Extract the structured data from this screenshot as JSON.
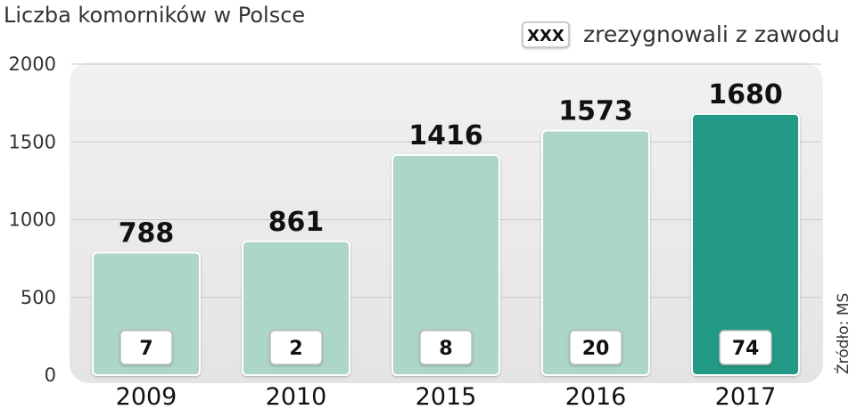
{
  "chart_data": {
    "type": "bar",
    "title": "Liczba komorników w Polsce",
    "legend": {
      "box_label": "XXX",
      "label": "zrezygnowali z zawodu",
      "placement": "top-right"
    },
    "categories": [
      "2009",
      "2010",
      "2015",
      "2016",
      "2017"
    ],
    "values": [
      788,
      861,
      1416,
      1573,
      1680
    ],
    "resigned": [
      7,
      2,
      8,
      20,
      74
    ],
    "ylim": [
      0,
      2000
    ],
    "yticks": [
      0,
      500,
      1000,
      1500,
      2000
    ],
    "xlabel": "",
    "ylabel": "",
    "grid": true,
    "source": "Źródło: MS"
  },
  "colors": {
    "bar": "#acd6c5",
    "bar_highlight": "#249a85",
    "panel": "#ececec",
    "grid": "#c8c8c8"
  }
}
